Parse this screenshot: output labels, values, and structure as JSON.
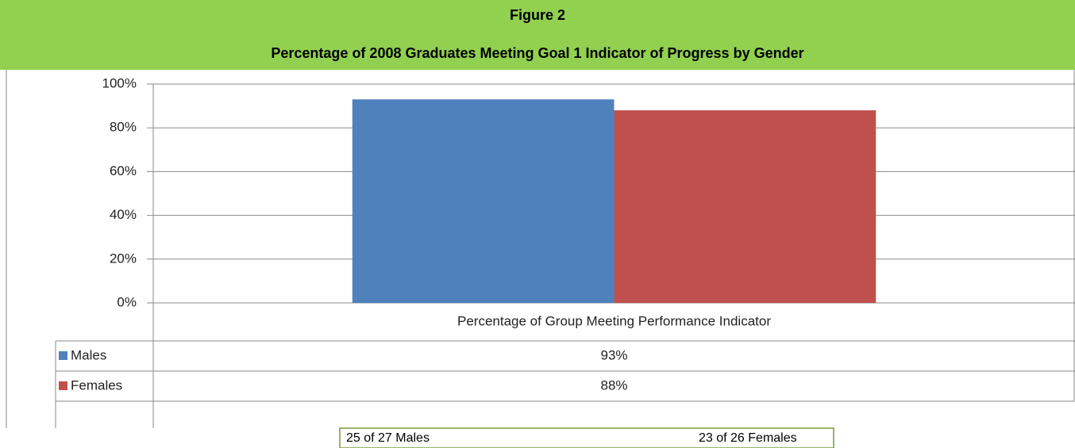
{
  "chart_data": {
    "type": "bar",
    "title": "Figure 2",
    "subtitle": "Percentage of 2008 Graduates Meeting Goal 1 Indicator of Progress by Gender",
    "categories": [
      "Percentage of Group Meeting Performance Indicator"
    ],
    "series": [
      {
        "name": "Males",
        "color": "#4f81bd",
        "values": [
          93
        ],
        "value_labels": [
          "93%"
        ]
      },
      {
        "name": "Females",
        "color": "#c0504d",
        "values": [
          88
        ],
        "value_labels": [
          "88%"
        ]
      }
    ],
    "ylim": [
      0,
      100
    ],
    "yticks": [
      {
        "value": 0,
        "label": "0%"
      },
      {
        "value": 20,
        "label": "20%"
      },
      {
        "value": 40,
        "label": "40%"
      },
      {
        "value": 60,
        "label": "60%"
      },
      {
        "value": 80,
        "label": "80%"
      },
      {
        "value": 100,
        "label": "100%"
      }
    ],
    "grid": true,
    "notes": [
      "25 of 27 Males",
      "23 of 26 Females"
    ]
  }
}
